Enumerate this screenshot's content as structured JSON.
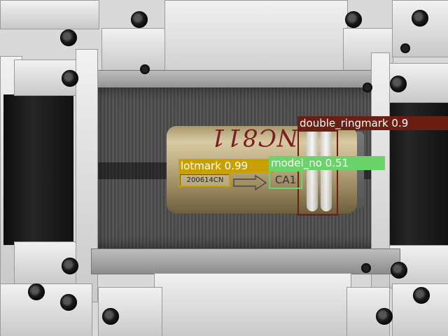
{
  "image": {
    "scene": "gripper-holding-cylinder"
  },
  "markings": {
    "handwritten": "NC811",
    "lot_code": "200614CN",
    "model_code": "CA1"
  },
  "detections": [
    {
      "label": "double_ringmark 0.9",
      "color": "#6b1f14"
    },
    {
      "label": "lotmark 0.99",
      "color": "#c8a000"
    },
    {
      "label": "model_no 0.51",
      "color": "#6ad36a"
    }
  ]
}
